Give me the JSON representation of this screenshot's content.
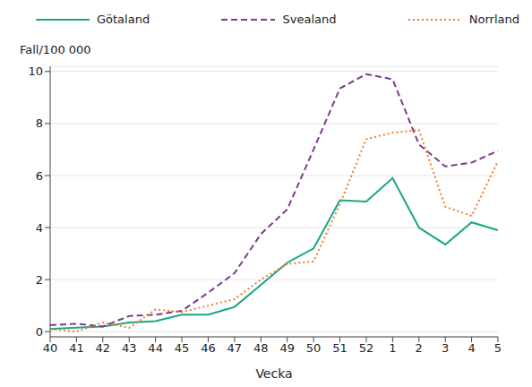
{
  "chart_data": {
    "type": "line",
    "x_label": "Vecka",
    "y_label": "Fall/100 000",
    "categories": [
      "40",
      "41",
      "42",
      "43",
      "44",
      "45",
      "46",
      "47",
      "48",
      "49",
      "50",
      "51",
      "52",
      "1",
      "2",
      "3",
      "4",
      "5"
    ],
    "series": [
      {
        "name": "Götaland",
        "color": "#1aa585",
        "line_style": "solid",
        "values": [
          0.1,
          0.15,
          0.2,
          0.35,
          0.4,
          0.65,
          0.65,
          0.95,
          1.8,
          2.65,
          3.2,
          5.05,
          5.0,
          5.9,
          4.0,
          3.35,
          4.2,
          3.9
        ]
      },
      {
        "name": "Svealand",
        "color": "#7b3d8f",
        "line_style": "dashed",
        "values": [
          0.25,
          0.3,
          0.2,
          0.6,
          0.65,
          0.8,
          1.5,
          2.25,
          3.75,
          4.7,
          7.0,
          9.35,
          9.9,
          9.7,
          7.2,
          6.35,
          6.5,
          6.95
        ]
      },
      {
        "name": "Norrland",
        "color": "#f07d2d",
        "line_style": "dotted",
        "values": [
          0.1,
          0.0,
          0.35,
          0.15,
          0.85,
          0.75,
          1.0,
          1.25,
          2.0,
          2.6,
          2.7,
          4.9,
          7.4,
          7.65,
          7.75,
          4.8,
          4.45,
          6.55
        ]
      }
    ],
    "ylim": [
      -0.2,
      10.2
    ],
    "yticks": [
      0,
      2,
      4,
      6,
      8,
      10
    ],
    "grid": true,
    "legend": "top"
  }
}
